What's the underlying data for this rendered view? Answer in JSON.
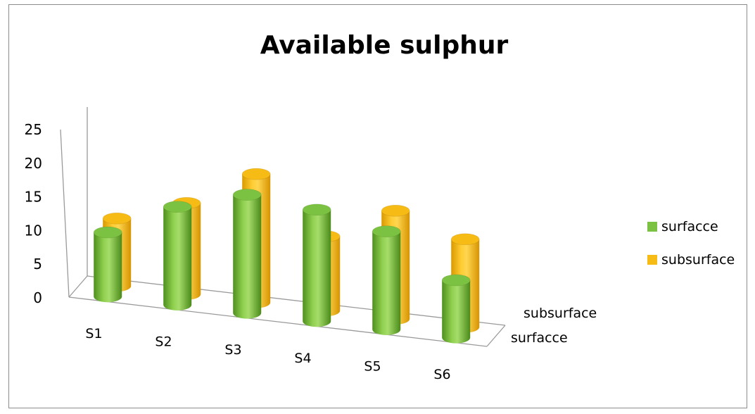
{
  "chart_data": {
    "type": "bar",
    "subtype": "3d-cylinder",
    "title": "Available sulphur",
    "categories": [
      "S1",
      "S2",
      "S3",
      "S4",
      "S5",
      "S6"
    ],
    "depth_labels": [
      "surfacce",
      "subsurface"
    ],
    "series": [
      {
        "name": "surfacce",
        "values": [
          9.5,
          14.5,
          17.5,
          16.5,
          14.5,
          8.5
        ],
        "color": "#7cc242"
      },
      {
        "name": "subsurface",
        "values": [
          10,
          13.5,
          19,
          11,
          16,
          13
        ],
        "color": "#f7bb16"
      }
    ],
    "yticks": [
      0,
      5,
      10,
      15,
      20,
      25
    ],
    "ylim": [
      0,
      25
    ],
    "legend": "right",
    "grid": false
  }
}
